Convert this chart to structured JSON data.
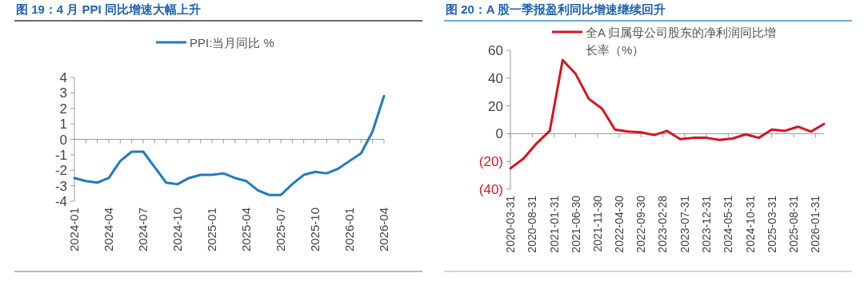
{
  "chart_data": [
    {
      "type": "line",
      "title": "图 19：4 月 PPI 同比增速大幅上升",
      "categories": [
        "2024-01",
        null,
        null,
        "2024-04",
        null,
        null,
        "2024-07",
        null,
        null,
        "2024-10",
        null,
        null,
        "2025-01",
        null,
        null,
        "2025-04",
        null,
        null,
        "2025-07",
        null,
        null,
        "2025-10",
        null,
        null,
        "2026-01",
        null,
        null,
        "2026-04"
      ],
      "series": [
        {
          "name": "PPI:当月同比 %",
          "color": "#1f7bc1",
          "values": [
            -2.5,
            -2.7,
            -2.8,
            -2.5,
            -1.4,
            -0.8,
            -0.8,
            -1.8,
            -2.8,
            -2.9,
            -2.5,
            -2.3,
            -2.3,
            -2.2,
            -2.5,
            -2.7,
            -3.3,
            -3.6,
            -3.6,
            -2.9,
            -2.3,
            -2.1,
            -2.2,
            -1.9,
            -1.4,
            -0.9,
            0.5,
            2.8
          ]
        }
      ],
      "ylim": [
        -4,
        4
      ],
      "yticks": [
        -4,
        -3,
        -2,
        -1,
        0,
        1,
        2,
        3,
        4
      ],
      "legend": "top",
      "marker": "none",
      "line_style": "solid"
    },
    {
      "type": "line",
      "title": "图 20：A 股一季报盈利同比增速继续回升",
      "x": [
        "2020-03-31",
        "2020-06-30",
        "2020-09-30",
        "2020-12-31",
        "2021-03-31",
        "2021-06-30",
        "2021-09-30",
        "2021-12-31",
        "2022-03-31",
        "2022-06-30",
        "2022-09-30",
        "2022-12-31",
        "2023-03-31",
        "2023-06-30",
        "2023-09-30",
        "2023-12-31",
        "2024-03-31",
        "2024-06-30",
        "2024-09-30",
        "2024-12-31",
        "2025-03-31",
        "2025-06-30",
        "2025-09-30",
        "2025-12-31",
        "2026-03-31"
      ],
      "series": [
        {
          "name": "全A 归属母公司股东的净利润同比增长率（%）",
          "color": "#d7141e",
          "values": [
            -25,
            -18,
            -7,
            2,
            53,
            43,
            25,
            18,
            3,
            1.5,
            1,
            -1,
            2,
            -4,
            -3,
            -3,
            -4.5,
            -3.5,
            -0.5,
            -3,
            3,
            2,
            5,
            1.5,
            7
          ]
        }
      ],
      "xlim": [
        "2020-03-31",
        "2026-03-31"
      ],
      "xticks": [
        "2020-03-31",
        "2020-08-31",
        "2021-01-31",
        "2021-06-30",
        "2021-11-30",
        "2022-04-30",
        "2022-09-30",
        "2023-02-28",
        "2023-07-31",
        "2023-12-31",
        "2024-05-31",
        "2024-10-31",
        "2025-03-31",
        "2025-08-31",
        "2026-01-31"
      ],
      "ylim": [
        -40,
        60
      ],
      "yticks": [
        {
          "value": -40,
          "label": "(40)"
        },
        {
          "value": -20,
          "label": "(20)"
        },
        0,
        20,
        40,
        60
      ],
      "legend": "top",
      "marker": "none",
      "line_style": "solid"
    }
  ]
}
